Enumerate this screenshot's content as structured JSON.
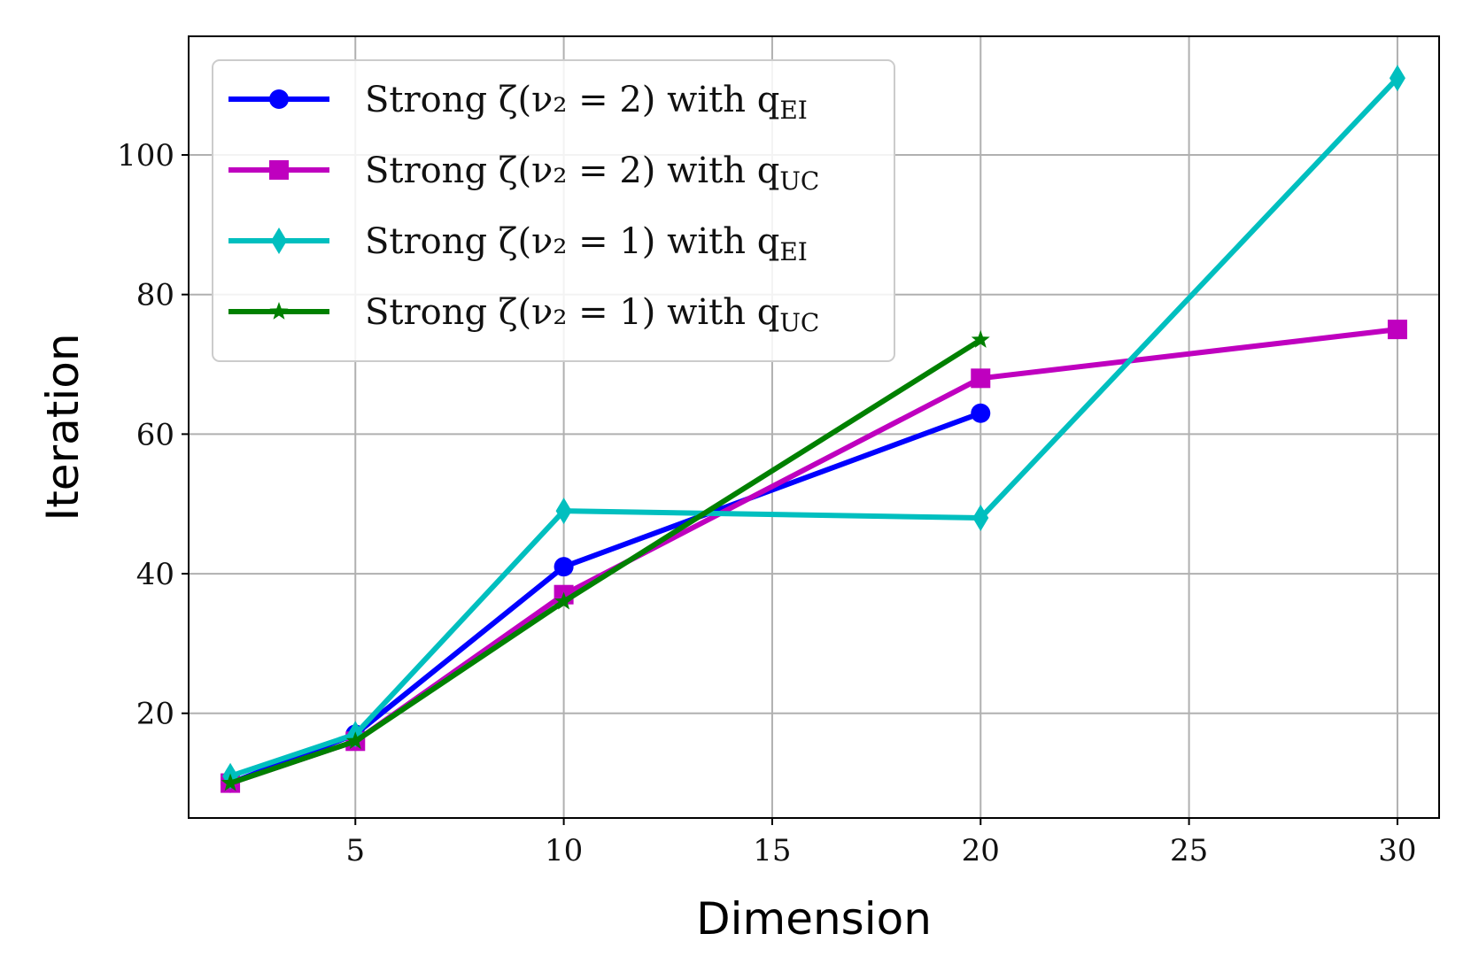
{
  "chart_data": {
    "type": "line",
    "xlabel": "Dimension",
    "ylabel": "Iteration",
    "xlim": [
      1,
      31
    ],
    "ylim": [
      5,
      117
    ],
    "xticks": [
      5,
      10,
      15,
      20,
      25,
      30
    ],
    "yticks": [
      20,
      40,
      60,
      80,
      100
    ],
    "grid": true,
    "legend_position": "top-left",
    "series": [
      {
        "name": "Strong ζ(ν2 = 2) with qEI",
        "legend_main": "Strong ζ(ν₂ = 2) with q",
        "legend_sub": "EI",
        "color": "#0000ff",
        "marker": "circle",
        "x": [
          2,
          5,
          10,
          20
        ],
        "y": [
          10,
          17,
          41,
          63
        ]
      },
      {
        "name": "Strong ζ(ν2 = 2) with qUC",
        "legend_main": "Strong ζ(ν₂ = 2) with q",
        "legend_sub": "UC",
        "color": "#bf00bf",
        "marker": "square",
        "x": [
          2,
          5,
          10,
          20,
          30
        ],
        "y": [
          10,
          16,
          37,
          68,
          75
        ]
      },
      {
        "name": "Strong ζ(ν2 = 1) with qEI",
        "legend_main": "Strong ζ(ν₂ = 1) with q",
        "legend_sub": "EI",
        "color": "#00bfbf",
        "marker": "diamond",
        "x": [
          2,
          5,
          10,
          20,
          30
        ],
        "y": [
          11,
          17,
          49,
          48,
          111
        ]
      },
      {
        "name": "Strong ζ(ν2 = 1) with qUC",
        "legend_main": "Strong ζ(ν₂ = 1) with q",
        "legend_sub": "UC",
        "color": "#008000",
        "marker": "star",
        "x": [
          2,
          5,
          10,
          20
        ],
        "y": [
          10,
          16,
          36,
          73.5
        ]
      }
    ]
  }
}
